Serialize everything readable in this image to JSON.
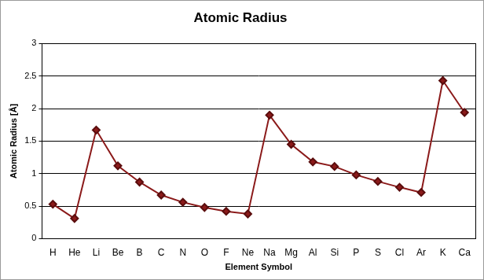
{
  "chart_data": {
    "type": "line",
    "title": "Atomic Radius",
    "x_label": "Element Symbol",
    "y_label": "Atomic Radius [Å]",
    "categories": [
      "H",
      "He",
      "Li",
      "Be",
      "B",
      "C",
      "N",
      "O",
      "F",
      "Ne",
      "Na",
      "Mg",
      "Al",
      "Si",
      "P",
      "S",
      "Cl",
      "Ar",
      "K",
      "Ca"
    ],
    "values": [
      0.53,
      0.31,
      1.67,
      1.12,
      0.87,
      0.67,
      0.56,
      0.48,
      0.42,
      0.38,
      1.9,
      1.45,
      1.18,
      1.11,
      0.98,
      0.88,
      0.79,
      0.71,
      2.43,
      1.94
    ],
    "color": "#8b1a1a",
    "marker": "diamond",
    "ylim": [
      0,
      3
    ],
    "yticks": [
      0,
      0.5,
      1,
      1.5,
      2,
      2.5,
      3
    ],
    "grid": true
  }
}
